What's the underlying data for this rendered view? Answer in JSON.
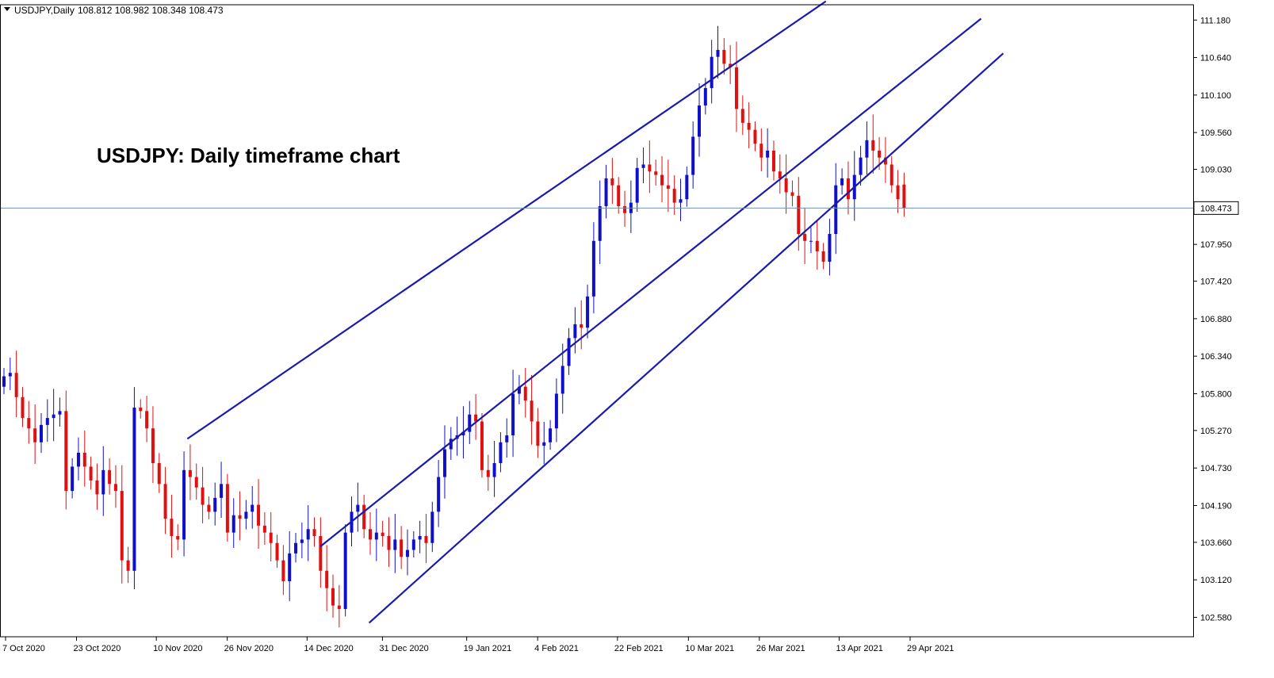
{
  "header": {
    "symbol": "USDJPY",
    "timeframe": "Daily",
    "open": "108.812",
    "high": "108.982",
    "low": "108.348",
    "close": "108.473"
  },
  "annotation": "USDJPY: Daily timeframe chart",
  "colors": {
    "bull": "#1010C8",
    "bear": "#E01010",
    "channel": "#1A1AB0",
    "price_line": "#7090B0",
    "axis": "#000000",
    "price_label_bg": "#ffffff"
  },
  "chart_data": {
    "type": "candlestick",
    "ylim": [
      102.3,
      111.4
    ],
    "y_ticks": [
      "111.180",
      "110.640",
      "110.100",
      "109.560",
      "109.030",
      "108.473",
      "107.950",
      "107.420",
      "106.880",
      "106.340",
      "105.800",
      "105.270",
      "104.730",
      "104.190",
      "103.660",
      "103.120",
      "102.580"
    ],
    "current_price": "108.473",
    "x_ticks": [
      "7 Oct 2020",
      "23 Oct 2020",
      "10 Nov 2020",
      "26 Nov 2020",
      "14 Dec 2020",
      "31 Dec 2020",
      "19 Jan 2021",
      "4 Feb 2021",
      "22 Feb 2021",
      "10 Mar 2021",
      "26 Mar 2021",
      "13 Apr 2021",
      "29 Apr 2021"
    ],
    "channels": [
      {
        "start": [
          "17 Nov 2020",
          105.15
        ],
        "end": [
          "10 Apr 2021",
          111.45
        ]
      },
      {
        "start": [
          "17 Dec 2020",
          103.6
        ],
        "end": [
          "15 May 2021",
          111.2
        ]
      },
      {
        "start": [
          "28 Dec 2020",
          102.5
        ],
        "end": [
          "20 May 2021",
          110.7
        ]
      }
    ],
    "closes": [
      106.05,
      106.1,
      105.75,
      105.45,
      105.3,
      105.1,
      105.35,
      105.45,
      105.5,
      105.55,
      104.4,
      104.75,
      104.95,
      104.75,
      104.55,
      104.35,
      104.7,
      104.5,
      104.4,
      103.4,
      103.25,
      105.6,
      105.55,
      105.3,
      104.8,
      104.5,
      104.0,
      103.75,
      103.7,
      104.7,
      104.6,
      104.45,
      104.2,
      104.1,
      104.3,
      104.5,
      103.8,
      104.05,
      104.0,
      104.1,
      104.2,
      103.9,
      103.8,
      103.65,
      103.4,
      103.1,
      103.5,
      103.65,
      103.7,
      103.85,
      103.75,
      103.25,
      103.0,
      102.75,
      102.7,
      103.8,
      104.1,
      104.2,
      103.85,
      103.7,
      103.8,
      103.75,
      103.55,
      103.7,
      103.45,
      103.55,
      103.7,
      103.75,
      103.65,
      104.1,
      104.6,
      105.0,
      105.15,
      105.2,
      105.25,
      105.5,
      105.4,
      104.7,
      104.6,
      104.8,
      105.1,
      105.2,
      105.8,
      105.9,
      105.7,
      105.4,
      105.05,
      105.1,
      105.3,
      105.8,
      106.2,
      106.6,
      106.8,
      106.75,
      107.2,
      108.0,
      108.5,
      108.9,
      108.8,
      108.5,
      108.4,
      108.55,
      109.05,
      109.1,
      109.0,
      108.95,
      108.8,
      108.75,
      108.55,
      108.6,
      108.95,
      109.5,
      109.95,
      110.2,
      110.65,
      110.75,
      110.55,
      110.5,
      109.9,
      109.7,
      109.6,
      109.4,
      109.2,
      109.3,
      109.0,
      108.9,
      108.7,
      108.65,
      108.1,
      108.0,
      108.0,
      107.85,
      107.7,
      108.1,
      108.8,
      108.9,
      108.6,
      108.95,
      109.2,
      109.45,
      109.3,
      109.2,
      109.1,
      108.8,
      108.6,
      108.47
    ],
    "last_candle": {
      "open": 108.812,
      "high": 108.982,
      "low": 108.348,
      "close": 108.473
    }
  }
}
